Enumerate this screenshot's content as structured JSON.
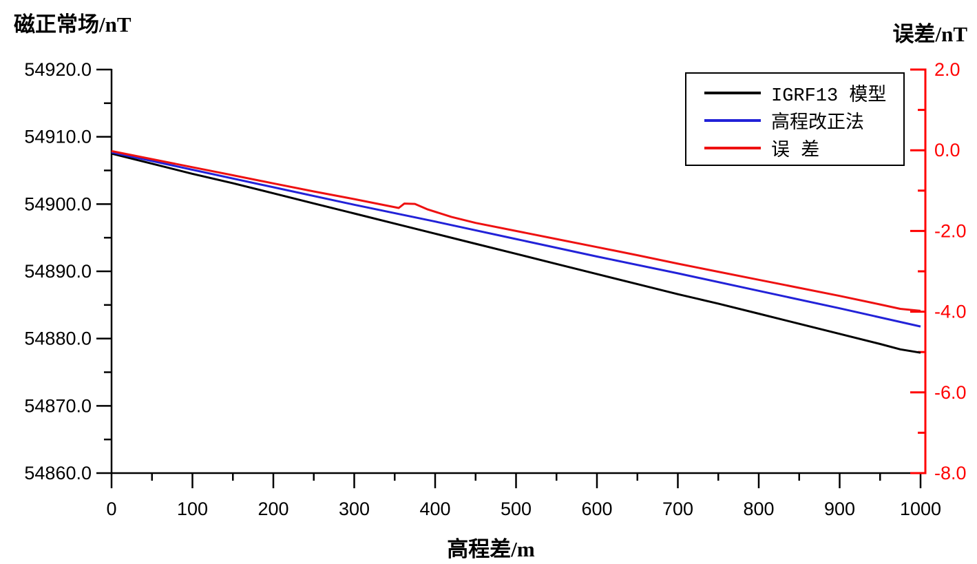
{
  "titles": {
    "left_axis": "磁正常场/nT",
    "right_axis": "误差/nT",
    "x_axis": "高程差/m"
  },
  "legend": {
    "items": [
      {
        "label": "IGRF13 模型",
        "color": "#000000"
      },
      {
        "label": "高程改正法",
        "color": "#2222D8"
      },
      {
        "label": "误 差",
        "color": "#EE1111"
      }
    ]
  },
  "chart_data": {
    "type": "line",
    "title": "",
    "grid": false,
    "legend_position": "top-right",
    "x_axis": {
      "label": "高程差/m",
      "min": 0,
      "max": 1000,
      "major_step": 100,
      "minor_step": 50,
      "tick_labels": [
        "0",
        "100",
        "200",
        "300",
        "400",
        "500",
        "600",
        "700",
        "800",
        "900",
        "1000"
      ],
      "color": "#000000"
    },
    "left_y_axis": {
      "label": "磁正常场/nT",
      "min": 54860,
      "max": 54920,
      "major_step": 10,
      "minor_step": 5,
      "tick_labels": [
        "54920.0",
        "54910.0",
        "54900.0",
        "54890.0",
        "54880.0",
        "54870.0",
        "54860.0"
      ],
      "color": "#000000"
    },
    "right_y_axis": {
      "label": "误差/nT",
      "min": -8,
      "max": 2,
      "major_step": 2,
      "minor_step": 1,
      "tick_labels": [
        "2.0",
        "0.0",
        "-2.0",
        "-4.0",
        "-6.0",
        "-8.0"
      ],
      "color": "#FF0000"
    },
    "series": [
      {
        "name": "IGRF13 模型",
        "axis": "left",
        "color": "#000000",
        "points": [
          [
            0,
            54907.5
          ],
          [
            50,
            54906.0
          ],
          [
            100,
            54904.5
          ],
          [
            150,
            54903.1
          ],
          [
            200,
            54901.6
          ],
          [
            250,
            54900.1
          ],
          [
            300,
            54898.6
          ],
          [
            350,
            54897.1
          ],
          [
            400,
            54895.6
          ],
          [
            450,
            54894.1
          ],
          [
            500,
            54892.6
          ],
          [
            550,
            54891.1
          ],
          [
            600,
            54889.6
          ],
          [
            650,
            54888.1
          ],
          [
            700,
            54886.6
          ],
          [
            750,
            54885.2
          ],
          [
            800,
            54883.7
          ],
          [
            850,
            54882.2
          ],
          [
            900,
            54880.7
          ],
          [
            950,
            54879.2
          ],
          [
            975,
            54878.4
          ],
          [
            1000,
            54877.9
          ]
        ]
      },
      {
        "name": "高程改正法",
        "axis": "left",
        "color": "#2222D8",
        "points": [
          [
            0,
            54907.7
          ],
          [
            100,
            54905.1
          ],
          [
            200,
            54902.5
          ],
          [
            300,
            54899.9
          ],
          [
            400,
            54897.4
          ],
          [
            500,
            54894.8
          ],
          [
            600,
            54892.2
          ],
          [
            700,
            54889.7
          ],
          [
            800,
            54887.1
          ],
          [
            900,
            54884.5
          ],
          [
            1000,
            54881.8
          ]
        ]
      },
      {
        "name": "误 差",
        "axis": "right",
        "color": "#EE1111",
        "points": [
          [
            0,
            -0.02
          ],
          [
            50,
            -0.22
          ],
          [
            100,
            -0.42
          ],
          [
            150,
            -0.62
          ],
          [
            200,
            -0.82
          ],
          [
            250,
            -1.02
          ],
          [
            300,
            -1.21
          ],
          [
            340,
            -1.37
          ],
          [
            355,
            -1.43
          ],
          [
            362,
            -1.32
          ],
          [
            375,
            -1.33
          ],
          [
            390,
            -1.46
          ],
          [
            420,
            -1.65
          ],
          [
            450,
            -1.8
          ],
          [
            500,
            -2.0
          ],
          [
            550,
            -2.2
          ],
          [
            600,
            -2.4
          ],
          [
            650,
            -2.6
          ],
          [
            700,
            -2.81
          ],
          [
            750,
            -3.01
          ],
          [
            800,
            -3.21
          ],
          [
            850,
            -3.41
          ],
          [
            900,
            -3.61
          ],
          [
            950,
            -3.82
          ],
          [
            975,
            -3.93
          ],
          [
            1000,
            -3.98
          ]
        ]
      }
    ]
  }
}
